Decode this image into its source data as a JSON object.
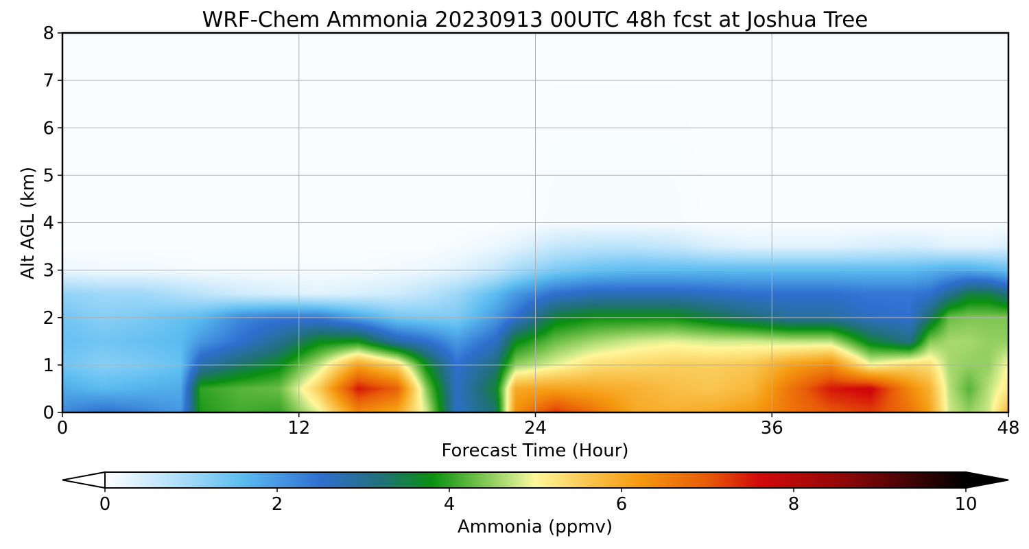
{
  "chart_data": {
    "type": "heatmap",
    "title": "WRF-Chem Ammonia  20230913 00UTC 48h fcst at Joshua Tree",
    "xlabel": "Forecast Time (Hour)",
    "ylabel": "Alt AGL (km)",
    "xlim": [
      0,
      48
    ],
    "ylim": [
      0,
      8
    ],
    "xticks": [
      "0",
      "12",
      "24",
      "36",
      "48"
    ],
    "yticks": [
      "0",
      "1",
      "2",
      "3",
      "4",
      "5",
      "6",
      "7",
      "8"
    ],
    "grid": true,
    "colorbar": {
      "label": "Ammonia  (ppmv)",
      "min": 0,
      "max": 10,
      "ticks": [
        "0",
        "2",
        "4",
        "6",
        "8",
        "10"
      ],
      "extend": "both",
      "colors": [
        {
          "v": 0,
          "c": "#ffffff"
        },
        {
          "v": 1,
          "c": "#9fd8f8"
        },
        {
          "v": 1.6,
          "c": "#5bbcf0"
        },
        {
          "v": 2.5,
          "c": "#2f6fd0"
        },
        {
          "v": 3.2,
          "c": "#21707a"
        },
        {
          "v": 3.8,
          "c": "#0a9010"
        },
        {
          "v": 4.3,
          "c": "#6bbd45"
        },
        {
          "v": 4.8,
          "c": "#cfea8a"
        },
        {
          "v": 5.0,
          "c": "#fff79a"
        },
        {
          "v": 5.6,
          "c": "#f9c651"
        },
        {
          "v": 6.2,
          "c": "#f59a10"
        },
        {
          "v": 7.0,
          "c": "#e85a08"
        },
        {
          "v": 7.6,
          "c": "#d20a0a"
        },
        {
          "v": 8.6,
          "c": "#8e0808"
        },
        {
          "v": 10,
          "c": "#000000"
        }
      ]
    },
    "field": {
      "x": [
        0,
        2,
        4,
        6,
        7,
        9,
        11,
        13,
        15,
        17,
        18.5,
        20,
        22,
        23,
        25,
        27,
        29,
        31,
        33,
        35,
        37,
        39,
        41,
        43,
        44,
        45,
        46,
        47,
        48
      ],
      "y": [
        0,
        0.5,
        1,
        1.5,
        2,
        2.5,
        3,
        3.5,
        4,
        8
      ],
      "z": [
        [
          2.2,
          2.5,
          2.3,
          2.0,
          3.9,
          4.1,
          4.0,
          4.9,
          6.4,
          6.0,
          4.8,
          2.6,
          3.3,
          6.3,
          7.3,
          6.7,
          6.0,
          5.9,
          6.0,
          6.2,
          6.7,
          7.0,
          7.2,
          6.7,
          6.1,
          4.8,
          4.5,
          4.8,
          5.8
        ],
        [
          1.8,
          1.6,
          1.7,
          1.8,
          4.0,
          4.2,
          4.3,
          5.5,
          7.5,
          6.9,
          4.4,
          2.6,
          3.6,
          6.0,
          6.1,
          6.0,
          5.9,
          5.7,
          5.6,
          5.8,
          6.7,
          7.5,
          7.7,
          6.4,
          5.9,
          4.7,
          4.2,
          4.7,
          5.2
        ],
        [
          1.4,
          1.2,
          1.3,
          1.5,
          2.8,
          3.3,
          3.7,
          4.7,
          6.1,
          5.4,
          3.7,
          2.5,
          3.2,
          4.5,
          4.9,
          5.3,
          5.4,
          5.5,
          5.5,
          5.6,
          6.1,
          6.4,
          5.0,
          5.4,
          5.3,
          4.6,
          4.5,
          4.5,
          5.0
        ],
        [
          1.5,
          1.4,
          1.5,
          1.6,
          2.0,
          2.5,
          3.0,
          3.7,
          3.8,
          2.8,
          2.5,
          2.0,
          2.6,
          3.7,
          4.3,
          4.6,
          4.8,
          4.9,
          4.8,
          4.8,
          4.7,
          4.7,
          3.6,
          3.1,
          4.4,
          4.6,
          4.6,
          4.5,
          4.5
        ],
        [
          1.4,
          1.2,
          1.3,
          1.5,
          1.6,
          2.2,
          2.4,
          2.4,
          1.9,
          1.4,
          1.3,
          1.3,
          2.0,
          2.5,
          3.6,
          3.8,
          3.8,
          3.8,
          3.5,
          3.2,
          2.9,
          2.9,
          2.6,
          2.5,
          3.3,
          4.3,
          4.4,
          4.4,
          4.4
        ],
        [
          1.1,
          1.0,
          1.0,
          0.8,
          0.7,
          0.5,
          0.4,
          0.3,
          0.4,
          0.5,
          0.7,
          1.0,
          1.6,
          2.0,
          2.5,
          2.7,
          2.7,
          2.7,
          2.6,
          2.5,
          2.5,
          2.5,
          2.4,
          2.4,
          2.5,
          3.0,
          3.5,
          3.5,
          3.1
        ],
        [
          0.2,
          0.15,
          0.15,
          0.12,
          0.1,
          0.1,
          0.1,
          0.1,
          0.1,
          0.15,
          0.2,
          0.3,
          0.6,
          0.9,
          1.3,
          1.5,
          1.6,
          1.6,
          1.6,
          1.6,
          1.6,
          1.6,
          1.6,
          1.6,
          1.7,
          1.8,
          1.8,
          1.7,
          1.5
        ],
        [
          0.05,
          0.05,
          0.05,
          0.05,
          0.05,
          0.05,
          0.05,
          0.05,
          0.05,
          0.05,
          0.05,
          0.1,
          0.2,
          0.3,
          0.6,
          0.7,
          0.7,
          0.6,
          0.4,
          0.3,
          0.3,
          0.3,
          0.4,
          0.45,
          0.4,
          0.3,
          0.3,
          0.3,
          0.4
        ],
        [
          0.05,
          0.05,
          0.05,
          0.05,
          0.05,
          0.05,
          0.05,
          0.05,
          0.05,
          0.05,
          0.05,
          0.05,
          0.05,
          0.05,
          0.1,
          0.1,
          0.1,
          0.1,
          0.05,
          0.05,
          0.05,
          0.05,
          0.05,
          0.05,
          0.05,
          0.05,
          0.05,
          0.05,
          0.05
        ],
        [
          0.05,
          0.05,
          0.05,
          0.05,
          0.05,
          0.05,
          0.05,
          0.05,
          0.05,
          0.05,
          0.05,
          0.05,
          0.05,
          0.05,
          0.05,
          0.05,
          0.05,
          0.05,
          0.05,
          0.05,
          0.05,
          0.05,
          0.05,
          0.05,
          0.05,
          0.05,
          0.05,
          0.05,
          0.05
        ]
      ]
    }
  }
}
